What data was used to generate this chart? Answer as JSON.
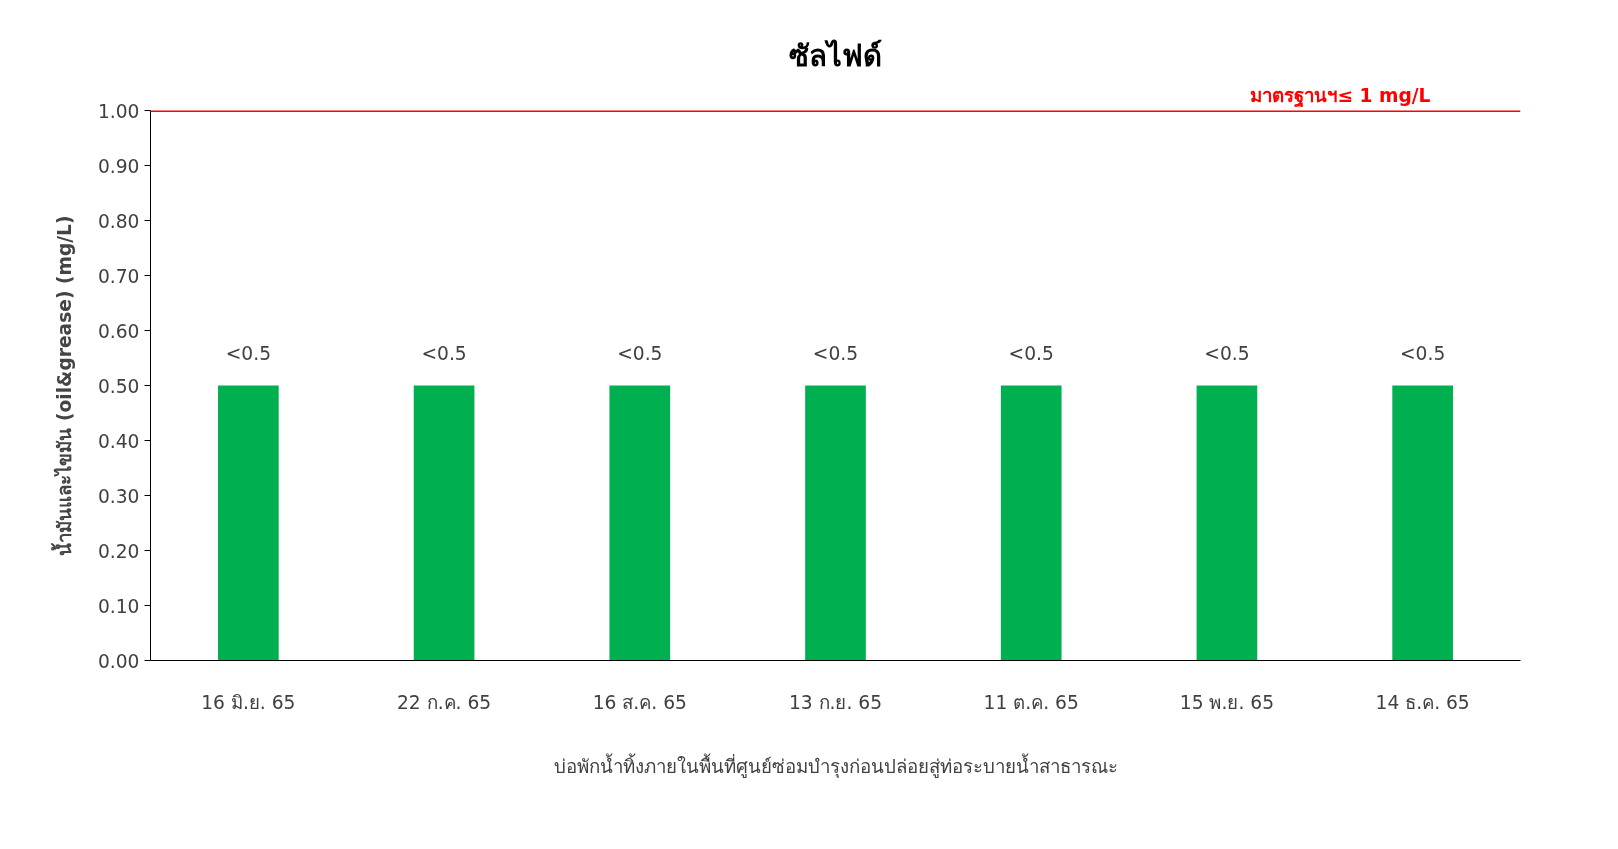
{
  "chart_data": {
    "type": "bar",
    "title": "ซัลไฟด์",
    "xlabel": "บ่อพักน้ำทิ้งภายในพื้นที่ศูนย์ซ่อมบำรุงก่อนปล่อยสู่ท่อระบายน้ำสาธารณะ",
    "ylabel": "น้ำมันและไขมัน (oil&grease) (mg/L)",
    "categories": [
      "16 มิ.ย. 65",
      "22 ก.ค. 65",
      "16 ส.ค. 65",
      "13 ก.ย. 65",
      "11 ต.ค. 65",
      "15 พ.ย. 65",
      "14 ธ.ค. 65"
    ],
    "values": [
      0.5,
      0.5,
      0.5,
      0.5,
      0.5,
      0.5,
      0.5
    ],
    "color": "#00b050",
    "value_labels": [
      "<0.5",
      "<0.5",
      "<0.5",
      "<0.5",
      "<0.5",
      "<0.5",
      "<0.5"
    ],
    "ylim": [
      0,
      1
    ],
    "yticks": [
      {
        "value": 0,
        "label": "0.00"
      },
      {
        "value": 0.1,
        "label": "0.10"
      },
      {
        "value": 0.2,
        "label": "0.20"
      },
      {
        "value": 0.3,
        "label": "0.30"
      },
      {
        "value": 0.4,
        "label": "0.40"
      },
      {
        "value": 0.5,
        "label": "0.50"
      },
      {
        "value": 0.6,
        "label": "0.60"
      },
      {
        "value": 0.7,
        "label": "0.70"
      },
      {
        "value": 0.8,
        "label": "0.80"
      },
      {
        "value": 0.9,
        "label": "0.90"
      },
      {
        "value": 1,
        "label": "1.00"
      }
    ],
    "ref_lines": [
      {
        "axis": "y",
        "value": 1,
        "label": "มาตรฐานฯ≤ 1 mg/L",
        "color": "#ff0000"
      }
    ],
    "grid": false
  }
}
